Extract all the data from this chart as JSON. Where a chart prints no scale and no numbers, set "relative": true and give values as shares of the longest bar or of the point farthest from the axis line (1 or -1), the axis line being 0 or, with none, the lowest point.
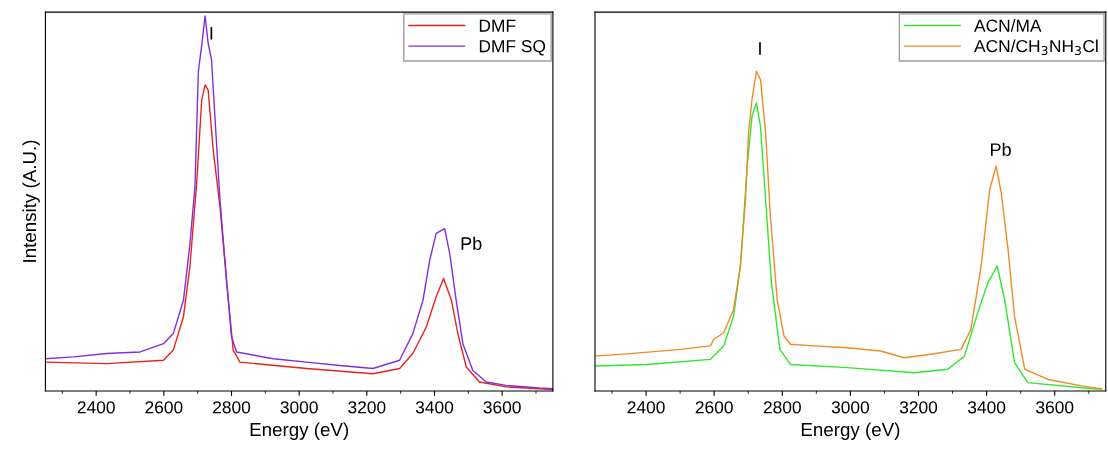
{
  "chart_data": [
    {
      "type": "line",
      "relative": true,
      "xlabel": "Energy (eV)",
      "ylabel": "Intensity (A.U.)",
      "xlim": [
        2250,
        3750
      ],
      "xticks": [
        2400,
        2600,
        2800,
        3000,
        3200,
        3400,
        3600
      ],
      "legend": "top right",
      "tick_labels": "x",
      "annotations": [
        "I",
        "Pb"
      ],
      "series": [
        {
          "name": "DMF",
          "color": "#e8231f",
          "x": [
            2250,
            2431,
            2599,
            2628,
            2658,
            2677,
            2697,
            2712,
            2722,
            2731,
            2746,
            2766,
            2786,
            2805,
            2825,
            3022,
            3218,
            3297,
            3336,
            3376,
            3405,
            3427,
            3450,
            3469,
            3494,
            3533,
            3612,
            3750
          ],
          "values": [
            0.077,
            0.073,
            0.082,
            0.109,
            0.198,
            0.331,
            0.553,
            0.776,
            0.816,
            0.802,
            0.642,
            0.491,
            0.288,
            0.109,
            0.077,
            0.06,
            0.046,
            0.06,
            0.1,
            0.171,
            0.251,
            0.3,
            0.242,
            0.153,
            0.064,
            0.024,
            0.011,
            0.004
          ]
        },
        {
          "name": "DMF SQ",
          "color": "#7f2fe0",
          "x": [
            2250,
            2333,
            2431,
            2530,
            2599,
            2628,
            2658,
            2677,
            2692,
            2702,
            2712,
            2722,
            2731,
            2741,
            2751,
            2766,
            2786,
            2800,
            2815,
            2923,
            3022,
            3120,
            3218,
            3297,
            3336,
            3366,
            3386,
            3405,
            3430,
            3445,
            3464,
            3484,
            3513,
            3553,
            3612,
            3710,
            3750
          ],
          "values": [
            0.086,
            0.091,
            0.1,
            0.104,
            0.126,
            0.153,
            0.242,
            0.391,
            0.544,
            0.851,
            0.922,
            1.0,
            0.927,
            0.883,
            0.731,
            0.509,
            0.288,
            0.145,
            0.104,
            0.086,
            0.077,
            0.068,
            0.06,
            0.082,
            0.153,
            0.242,
            0.349,
            0.42,
            0.433,
            0.367,
            0.242,
            0.126,
            0.055,
            0.024,
            0.015,
            0.008,
            0.006
          ]
        }
      ]
    },
    {
      "type": "line",
      "relative": true,
      "xlabel": "Energy (eV)",
      "xlim": [
        2250,
        3750
      ],
      "xticks": [
        2400,
        2600,
        2800,
        3000,
        3200,
        3400,
        3600
      ],
      "legend": "top right",
      "tick_labels": "x",
      "annotations": [
        "I",
        "Pb"
      ],
      "series": [
        {
          "name": "ACN/MA",
          "color": "#2ee82e",
          "x": [
            2250,
            2402,
            2589,
            2628,
            2657,
            2677,
            2697,
            2711,
            2724,
            2736,
            2751,
            2768,
            2793,
            2824,
            2991,
            3188,
            3286,
            3335,
            3374,
            3404,
            3431,
            3453,
            3482,
            3521,
            3679,
            3737
          ],
          "values": [
            0.078,
            0.083,
            0.099,
            0.141,
            0.234,
            0.391,
            0.703,
            0.859,
            0.901,
            0.828,
            0.599,
            0.339,
            0.13,
            0.083,
            0.073,
            0.057,
            0.068,
            0.109,
            0.245,
            0.339,
            0.391,
            0.286,
            0.089,
            0.026,
            0.01,
            0.005
          ]
        },
        {
          "name": "ACN/CH$_{3}$NH$_{3}$Cl",
          "color": "#f08a24",
          "x": [
            2250,
            2353,
            2500,
            2589,
            2598,
            2628,
            2657,
            2677,
            2692,
            2701,
            2711,
            2724,
            2736,
            2751,
            2765,
            2785,
            2805,
            2824,
            2893,
            2991,
            3089,
            3158,
            3237,
            3325,
            3354,
            3384,
            3409,
            3428,
            3443,
            3463,
            3482,
            3512,
            3580,
            3679,
            3737
          ],
          "values": [
            0.109,
            0.117,
            0.13,
            0.141,
            0.161,
            0.182,
            0.255,
            0.391,
            0.599,
            0.807,
            0.911,
            1.0,
            0.974,
            0.807,
            0.547,
            0.286,
            0.172,
            0.146,
            0.141,
            0.135,
            0.125,
            0.104,
            0.115,
            0.13,
            0.193,
            0.391,
            0.63,
            0.703,
            0.62,
            0.443,
            0.234,
            0.068,
            0.036,
            0.016,
            0.007
          ]
        }
      ]
    }
  ]
}
